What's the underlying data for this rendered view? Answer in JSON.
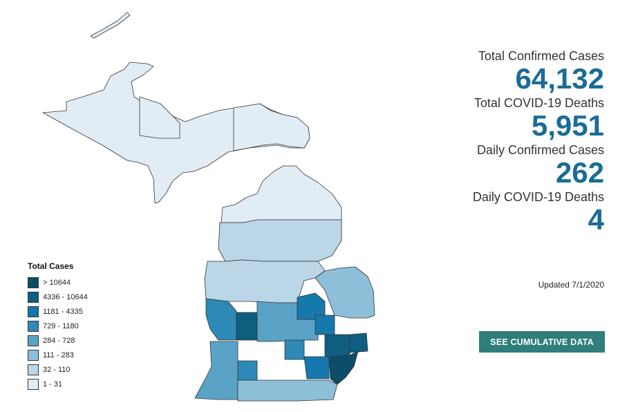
{
  "stats": [
    {
      "label": "Total Confirmed Cases",
      "value": "64,132"
    },
    {
      "label": "Total COVID-19 Deaths",
      "value": "5,951"
    },
    {
      "label": "Daily Confirmed Cases",
      "value": "262"
    },
    {
      "label": "Daily COVID-19 Deaths",
      "value": "4"
    }
  ],
  "updated": "Updated 7/1/2020",
  "cta_label": "SEE CUMULATIVE DATA",
  "legend": {
    "title": "Total Cases",
    "bins": [
      {
        "label": "> 10644",
        "color": "#0c4d68"
      },
      {
        "label": "4336 - 10644",
        "color": "#0e5e80"
      },
      {
        "label": "1181 - 4335",
        "color": "#1579ad"
      },
      {
        "label": "729 - 1180",
        "color": "#2d89b5"
      },
      {
        "label": "284 - 728",
        "color": "#5aa3c7"
      },
      {
        "label": "111 - 283",
        "color": "#8dbfd8"
      },
      {
        "label": "32 - 110",
        "color": "#bad6e7"
      },
      {
        "label": "1 - 31",
        "color": "#e2ecf4"
      }
    ]
  },
  "regions": [
    {
      "name": "upper-peninsula",
      "bin": 7
    },
    {
      "name": "upper-peninsula-marquette",
      "bin": 6
    },
    {
      "name": "isle-royale",
      "bin": 7
    },
    {
      "name": "upper-peninsula-east",
      "bin": 7
    },
    {
      "name": "northern-lower",
      "bin": 7
    },
    {
      "name": "northern-lower-mid",
      "bin": 6
    },
    {
      "name": "central-lower",
      "bin": 6
    },
    {
      "name": "thumb",
      "bin": 5
    },
    {
      "name": "kent",
      "bin": 1
    },
    {
      "name": "genesee",
      "bin": 2
    },
    {
      "name": "oakland",
      "bin": 1
    },
    {
      "name": "macomb",
      "bin": 1
    },
    {
      "name": "wayne",
      "bin": 0
    },
    {
      "name": "washtenaw",
      "bin": 2
    },
    {
      "name": "ottawa-muskegon",
      "bin": 3
    },
    {
      "name": "southwest",
      "bin": 4
    },
    {
      "name": "south-central",
      "bin": 4
    },
    {
      "name": "ingham",
      "bin": 3
    },
    {
      "name": "kalamazoo",
      "bin": 3
    }
  ]
}
